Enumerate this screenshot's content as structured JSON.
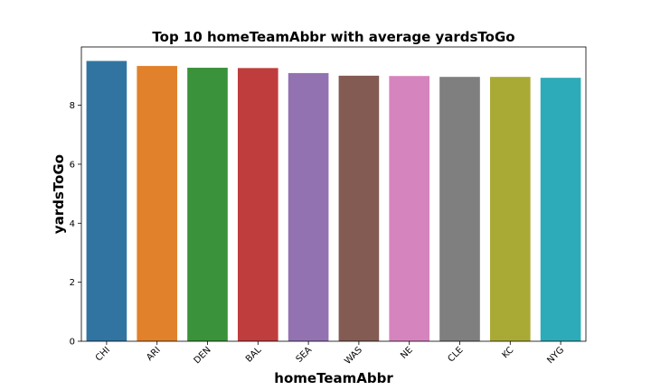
{
  "chart_data": {
    "type": "bar",
    "title": "Top 10 homeTeamAbbr with average yardsToGo",
    "xlabel": "homeTeamAbbr",
    "ylabel": "yardsToGo",
    "categories": [
      "CHI",
      "ARI",
      "DEN",
      "BAL",
      "SEA",
      "WAS",
      "NE",
      "CLE",
      "KC",
      "NYG"
    ],
    "values": [
      9.5,
      9.33,
      9.27,
      9.26,
      9.09,
      9.0,
      8.99,
      8.96,
      8.96,
      8.93
    ],
    "colors": [
      "#3274a1",
      "#e1812c",
      "#3a923a",
      "#c03d3e",
      "#9372b2",
      "#845b53",
      "#d684bd",
      "#7f7f7f",
      "#a9aa35",
      "#2eabb8"
    ],
    "ylim": [
      0,
      9.975
    ],
    "yticks": [
      0,
      2,
      4,
      6,
      8
    ],
    "grid": false,
    "legend": "none"
  }
}
